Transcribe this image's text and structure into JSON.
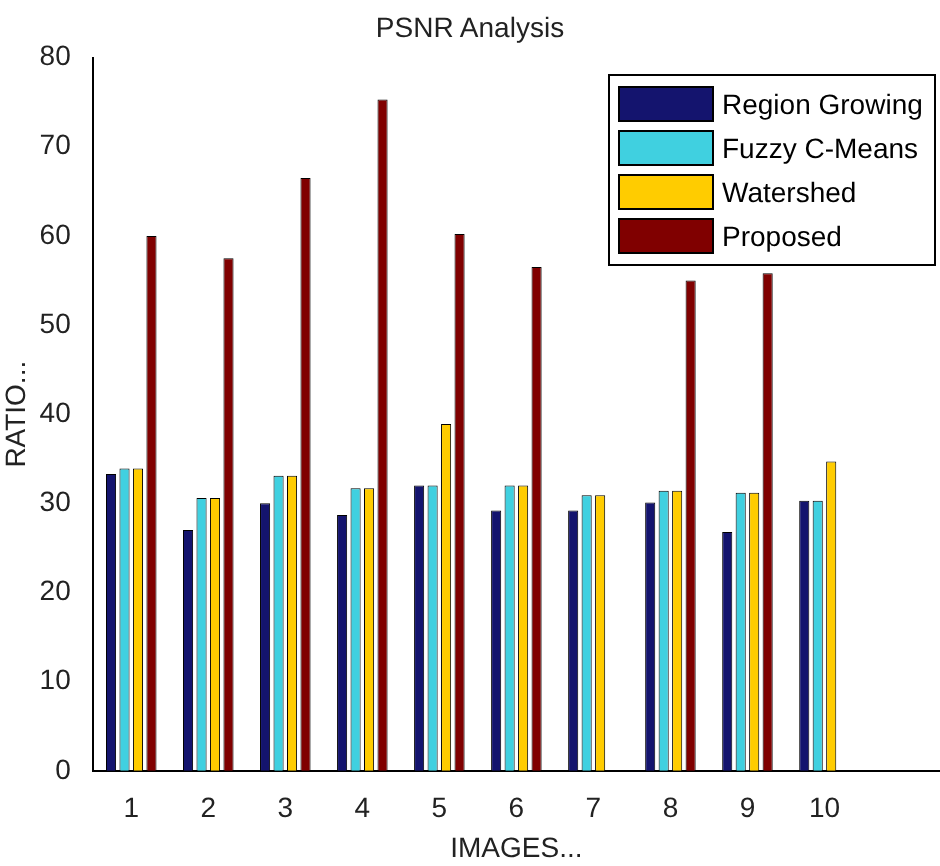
{
  "chart_data": {
    "type": "bar",
    "title": "PSNR Analysis",
    "xlabel": "IMAGES...",
    "ylabel": "RATIO...",
    "categories": [
      "1",
      "2",
      "3",
      "4",
      "5",
      "6",
      "7",
      "8",
      "9",
      "10",
      null
    ],
    "series": [
      {
        "name": "Region Growing",
        "color": "#14146e",
        "values": [
          33.3,
          27,
          30,
          28.7,
          32,
          29.2,
          29.2,
          30.1,
          26.8,
          30.3,
          null
        ]
      },
      {
        "name": "Fuzzy C-Means",
        "color": "#40d0e0",
        "values": [
          33.9,
          30.6,
          33.1,
          31.7,
          32,
          32,
          30.9,
          31.4,
          31.2,
          30.3,
          null
        ]
      },
      {
        "name": "Watershed",
        "color": "#ffcc00",
        "values": [
          33.9,
          30.6,
          33.1,
          31.7,
          38.9,
          32,
          30.9,
          31.4,
          31.2,
          34.7,
          null
        ]
      },
      {
        "name": "Proposed",
        "color": "#800000",
        "values": [
          60,
          57.5,
          66.5,
          75.3,
          60.2,
          56.5,
          null,
          55,
          55.8,
          null,
          null
        ]
      }
    ],
    "ylim": [
      0,
      80
    ],
    "yticks": [
      0,
      10,
      20,
      30,
      40,
      50,
      60,
      70,
      80
    ],
    "grid": false,
    "legend": "top right"
  }
}
